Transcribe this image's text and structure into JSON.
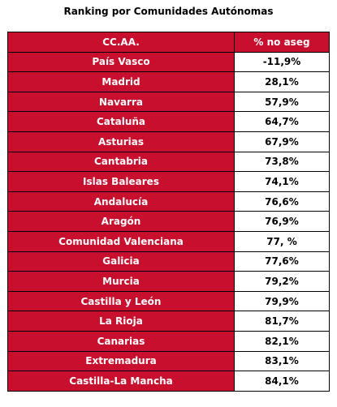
{
  "title": "Ranking por Comunidades Autónomas",
  "table": {
    "headers": [
      "CC.AA.",
      "% no aseg"
    ],
    "rows": [
      {
        "name": "País Vasco",
        "value": "-11,9%"
      },
      {
        "name": "Madrid",
        "value": "28,1%"
      },
      {
        "name": "Navarra",
        "value": "57,9%"
      },
      {
        "name": "Cataluña",
        "value": "64,7%"
      },
      {
        "name": "Asturias",
        "value": "67,9%"
      },
      {
        "name": "Cantabria",
        "value": "73,8%"
      },
      {
        "name": "Islas Baleares",
        "value": "74,1%"
      },
      {
        "name": "Andalucía",
        "value": "76,6%"
      },
      {
        "name": "Aragón",
        "value": "76,9%"
      },
      {
        "name": "Comunidad Valenciana",
        "value": "77, %"
      },
      {
        "name": "Galicia",
        "value": "77,6%"
      },
      {
        "name": "Murcia",
        "value": "79,2%"
      },
      {
        "name": "Castilla y León",
        "value": "79,9%"
      },
      {
        "name": "La Rioja",
        "value": "81,7%"
      },
      {
        "name": "Canarias",
        "value": "82,1%"
      },
      {
        "name": "Extremadura",
        "value": "83,1%"
      },
      {
        "name": "Castilla-La Mancha",
        "value": "84,1%"
      }
    ]
  },
  "colors": {
    "header_bg": "#c8102e",
    "name_bg": "#c8102e",
    "value_bg": "#ffffff"
  }
}
